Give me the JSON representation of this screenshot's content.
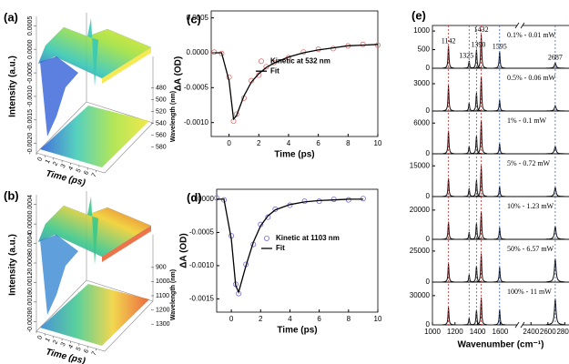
{
  "chart_data": [
    {
      "type": "surface3d",
      "label": "(a)",
      "xlabel": "Time (ps)",
      "ylabel": "Intensity (a.u.)",
      "zlabel": "Wavelength (nm)",
      "xlim": [
        0,
        8
      ],
      "xticks": [
        0,
        1,
        2,
        3,
        4,
        5,
        6,
        7
      ],
      "ylim": [
        -0.0022,
        0.0007
      ],
      "yticks": [
        {
          "value": 0.0005,
          "label": "0.0005"
        },
        {
          "value": 0,
          "label": "0.0000"
        },
        {
          "value": -0.0005,
          "label": "-0.0005"
        },
        {
          "value": -0.001,
          "label": "-0.0010"
        },
        {
          "value": -0.0015,
          "label": "-0.0015"
        },
        {
          "value": -0.002,
          "label": "-0.0020"
        }
      ],
      "zlim": [
        470,
        590
      ],
      "zticks": [
        480,
        500,
        520,
        540,
        560,
        580
      ],
      "colors": [
        "#2456d6",
        "#38c8b4",
        "#a4e23c",
        "#f0e52a"
      ]
    },
    {
      "type": "surface3d",
      "label": "(b)",
      "xlabel": "Time (ps)",
      "ylabel": "Intensity (a.u.)",
      "zlabel": "Wavelength (nm)",
      "xlim": [
        0,
        8
      ],
      "xticks": [
        0,
        1,
        2,
        3,
        4,
        5,
        6,
        7
      ],
      "ylim": [
        -0.0022,
        0.0006
      ],
      "yticks": [
        {
          "value": 0.0004,
          "label": "0.0004"
        },
        {
          "value": 0,
          "label": "0.0000"
        },
        {
          "value": -0.0004,
          "label": "-0.0004"
        },
        {
          "value": -0.0008,
          "label": "-0.0008"
        },
        {
          "value": -0.0012,
          "label": "-0.0012"
        },
        {
          "value": -0.0016,
          "label": "-0.0016"
        },
        {
          "value": -0.002,
          "label": "-0.0020"
        }
      ],
      "zlim": [
        850,
        1350
      ],
      "zticks": [
        900,
        1000,
        1100,
        1200,
        1300
      ],
      "colors": [
        "#2a7fd0",
        "#3cc88a",
        "#f0d030",
        "#e8501e"
      ]
    },
    {
      "type": "line",
      "label": "(c)",
      "xlabel": "Time (ps)",
      "ylabel": "ΔA (OD)",
      "x": [
        -1,
        -0.5,
        0,
        0.3,
        0.5,
        1,
        1.5,
        2,
        2.5,
        3,
        4,
        5,
        6,
        7,
        8,
        9,
        10
      ],
      "xlim": [
        -1.2,
        10
      ],
      "xticks": [
        0,
        2,
        4,
        6,
        8,
        10
      ],
      "ylim": [
        -0.0012,
        0.0006
      ],
      "yticks": [
        {
          "value": 0.0005,
          "label": "0.0005"
        },
        {
          "value": 0,
          "label": "0.0000"
        },
        {
          "value": -0.0005,
          "label": "-0.0005"
        },
        {
          "value": -0.001,
          "label": "-0.0010"
        }
      ],
      "series": [
        {
          "name": "Kinetic at 532 nm",
          "color": "#e07070",
          "style": "markers",
          "values": [
            1e-05,
            -1e-05,
            -0.00035,
            -0.00098,
            -0.00088,
            -0.00065,
            -0.0004,
            -0.00032,
            -0.0002,
            -0.00014,
            -7e-05,
            1e-05,
            5e-05,
            6e-05,
            0.0001,
            0.00012,
            0.00011
          ]
        },
        {
          "name": "Fit",
          "color": "#000000",
          "style": "line",
          "values": [
            0,
            0,
            -0.0004,
            -0.00095,
            -0.0009,
            -0.00062,
            -0.00042,
            -0.0003,
            -0.00021,
            -0.00015,
            -6e-05,
            0,
            4e-05,
            7e-05,
            0.0001,
            0.00011,
            0.00012
          ]
        }
      ]
    },
    {
      "type": "line",
      "label": "(d)",
      "xlabel": "Time (ps)",
      "ylabel": "ΔA (OD)",
      "x": [
        -1,
        -0.5,
        0,
        0.3,
        0.5,
        1,
        1.5,
        2,
        2.5,
        3,
        4,
        5,
        6,
        7,
        8,
        9
      ],
      "xlim": [
        -1,
        10
      ],
      "xticks": [
        0,
        2,
        4,
        6,
        8,
        10
      ],
      "ylim": [
        -0.0017,
        0.00015
      ],
      "yticks": [
        {
          "value": 0,
          "label": "0.0000"
        },
        {
          "value": -0.0005,
          "label": "-0.0005"
        },
        {
          "value": -0.001,
          "label": "-0.0010"
        },
        {
          "value": -0.0015,
          "label": "-0.0015"
        }
      ],
      "series": [
        {
          "name": "Kinetic at 1103 nm",
          "color": "#7a6ad0",
          "style": "markers",
          "values": [
            2e-05,
            -1e-05,
            -0.00055,
            -0.00128,
            -0.00142,
            -0.00098,
            -0.00068,
            -0.00038,
            -0.00027,
            -0.00015,
            -9e-05,
            -3e-05,
            -3e-05,
            0,
            -1e-05,
            1e-05
          ]
        },
        {
          "name": "Fit",
          "color": "#000000",
          "style": "line",
          "values": [
            0,
            0,
            -0.0006,
            -0.0013,
            -0.0014,
            -0.001,
            -0.00065,
            -0.0004,
            -0.00025,
            -0.00016,
            -8e-05,
            -4e-05,
            -2e-05,
            -1e-05,
            0,
            0
          ]
        }
      ]
    },
    {
      "type": "spectra",
      "label": "(e)",
      "xlabel": "Wavenumber (cm⁻¹)",
      "xlim": [
        1000,
        2850
      ],
      "xbreak": [
        1750,
        2300
      ],
      "xticks": [
        1000,
        1200,
        1400,
        1600,
        2400,
        2600,
        2800
      ],
      "peaks": [
        1142,
        1325,
        1390,
        1432,
        1595,
        2687
      ],
      "peak_colors": [
        "#d03030",
        "#4060c0",
        "#4060c0",
        "#d03030",
        "#4060c0",
        "#4060c0"
      ],
      "panels": [
        {
          "name": "0.1% - 0.01 mW",
          "ylim": [
            0,
            1100
          ],
          "yticks": [
            0,
            500,
            1000
          ],
          "values": [
            600,
            200,
            500,
            900,
            450,
            150
          ]
        },
        {
          "name": "0.5% - 0.06 mW",
          "ylim": [
            0,
            4500
          ],
          "yticks": [
            0,
            3000
          ],
          "values": [
            2800,
            900,
            2000,
            3800,
            1200,
            600
          ]
        },
        {
          "name": "1% - 0.1 mW",
          "ylim": [
            0,
            8000
          ],
          "yticks": [
            0,
            6000
          ],
          "values": [
            4500,
            1500,
            3500,
            6500,
            2000,
            1500
          ]
        },
        {
          "name": "5% - 0.72 mW",
          "ylim": [
            0,
            20000
          ],
          "yticks": [
            0,
            15000
          ],
          "values": [
            9000,
            4000,
            8000,
            15000,
            5000,
            4500
          ]
        },
        {
          "name": "10% - 1.23 mW",
          "ylim": [
            0,
            28000
          ],
          "yticks": [
            0,
            20000
          ],
          "values": [
            12000,
            5000,
            11000,
            19000,
            8000,
            9000
          ]
        },
        {
          "name": "50% - 6.57 mW",
          "ylim": [
            0,
            33000
          ],
          "yticks": [
            0,
            25000
          ],
          "values": [
            15000,
            6000,
            13000,
            23000,
            12000,
            19000
          ]
        },
        {
          "name": "100% - 11 mW",
          "ylim": [
            0,
            42000
          ],
          "yticks": [
            0,
            30000
          ],
          "values": [
            18000,
            7000,
            15000,
            28000,
            16000,
            27000
          ]
        }
      ]
    }
  ]
}
